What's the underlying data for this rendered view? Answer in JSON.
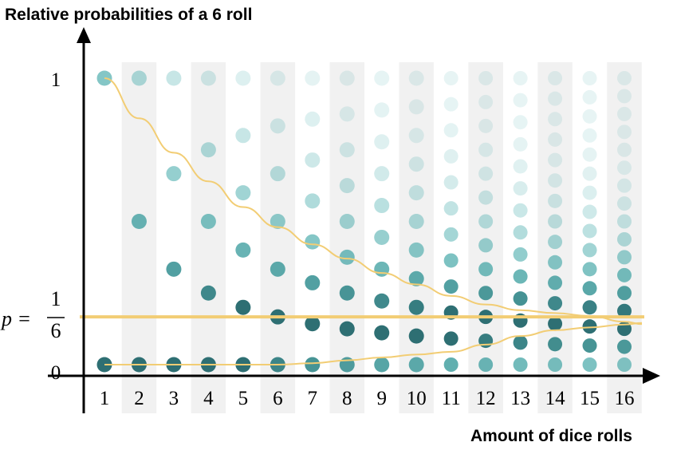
{
  "chart_data": {
    "type": "scatter",
    "title": "Relative probabilities of a 6 roll",
    "xlabel": "Amount of dice rolls",
    "ylabel": "",
    "x_ticks": [
      "1",
      "2",
      "3",
      "4",
      "5",
      "6",
      "7",
      "8",
      "9",
      "10",
      "11",
      "12",
      "13",
      "14",
      "15",
      "16"
    ],
    "y_ticks": [
      "0",
      "1"
    ],
    "p_label": {
      "prefix": "p =",
      "numerator": "1",
      "denominator": "6",
      "value": 0.1667
    },
    "xlim": [
      1,
      16
    ],
    "ylim": [
      0,
      1
    ],
    "grid": false,
    "column_shading": "alternating",
    "points_description": "For n rolls, dots at relative frequencies k/n for k = 0..n; color intensity reflects binomial probability",
    "envelope": {
      "x": [
        1,
        2,
        3,
        4,
        5,
        6,
        7,
        8,
        9,
        10,
        11,
        12,
        13,
        14,
        15,
        16
      ],
      "upper": [
        1.0,
        0.86,
        0.74,
        0.64,
        0.55,
        0.48,
        0.42,
        0.37,
        0.32,
        0.28,
        0.24,
        0.21,
        0.19,
        0.18,
        0.17,
        0.15
      ],
      "lower": [
        0.0,
        0.0,
        0.0,
        0.0,
        0.0,
        0.0,
        0.005,
        0.015,
        0.025,
        0.035,
        0.045,
        0.07,
        0.1,
        0.12,
        0.13,
        0.14
      ]
    },
    "colors": {
      "dot": "#3aa6a6",
      "dot_dark": "#2e6f73",
      "line": "#f2cd74",
      "shade": "#f1f1f1"
    }
  }
}
